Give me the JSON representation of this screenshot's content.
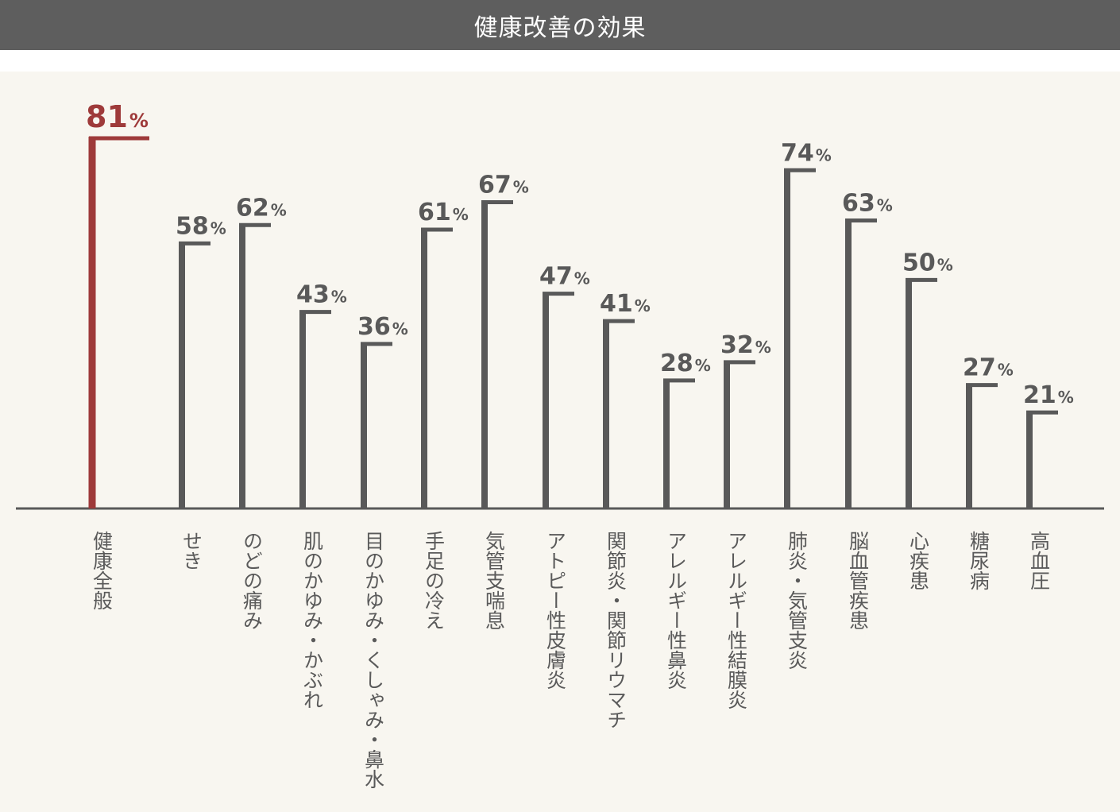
{
  "title": "健康改善の効果",
  "colors": {
    "title_bar": "#5e5e5e",
    "panel": "#f8f6f0",
    "bar": "#595959",
    "highlight": "#9e3a3a",
    "axis": "#595959"
  },
  "chart_data": {
    "type": "bar",
    "unit": "%",
    "categories": [
      "健康全般",
      "せき",
      "のどの痛み",
      "肌のかゆみ・かぶれ",
      "目のかゆみ・くしゃみ・鼻水",
      "手足の冷え",
      "気管支喘息",
      "アトピー性皮膚炎",
      "関節炎・関節リウマチ",
      "アレルギー性鼻炎",
      "アレルギー性結膜炎",
      "肺炎・気管支炎",
      "脳血管疾患",
      "心疾患",
      "糖尿病",
      "高血圧"
    ],
    "values": [
      81,
      58,
      62,
      43,
      36,
      61,
      67,
      47,
      41,
      28,
      32,
      74,
      63,
      50,
      27,
      21
    ],
    "highlight_index": 0,
    "ylim": [
      0,
      81
    ],
    "grid": false,
    "legend": "none"
  }
}
